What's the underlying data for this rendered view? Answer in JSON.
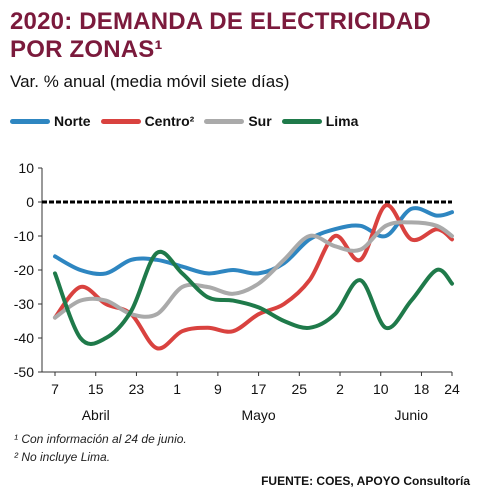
{
  "title_line1": "2020: DEMANDA DE ELECTRICIDAD",
  "title_line2": "POR ZONAS¹",
  "subtitle": "Var. % anual (media móvil siete días)",
  "footnote1": "¹ Con información al 24 de junio.",
  "footnote2": "² No incluye Lima.",
  "source": "FUENTE: COES, APOYO Consultoría",
  "colors": {
    "title": "#7b1a3c",
    "Norte": "#2e86c1",
    "Centro": "#d9423f",
    "Sur": "#aaaaaa",
    "Lima": "#1f7a4a",
    "zero_line": "#000000"
  },
  "chart_data": {
    "type": "line",
    "xlabel": "",
    "ylabel": "",
    "ylim": [
      -50,
      10
    ],
    "yticks": [
      10,
      0,
      -10,
      -20,
      -30,
      -40,
      -50
    ],
    "x_tick_labels": [
      "7",
      "15",
      "23",
      "1",
      "9",
      "17",
      "25",
      "2",
      "10",
      "18",
      "24"
    ],
    "month_labels": [
      "Abril",
      "Mayo",
      "Junio"
    ],
    "grid": false,
    "legend_position": "top",
    "x": [
      "2020-04-07",
      "2020-04-12",
      "2020-04-17",
      "2020-04-22",
      "2020-04-27",
      "2020-05-02",
      "2020-05-07",
      "2020-05-12",
      "2020-05-17",
      "2020-05-22",
      "2020-05-27",
      "2020-06-01",
      "2020-06-06",
      "2020-06-11",
      "2020-06-16",
      "2020-06-21",
      "2020-06-24"
    ],
    "series": [
      {
        "name": "Norte",
        "values": [
          -16,
          -20,
          -21,
          -17,
          -17,
          -19,
          -21,
          -20,
          -21,
          -18,
          -11,
          -8,
          -7,
          -10,
          -2,
          -4,
          -3
        ]
      },
      {
        "name": "Centro²",
        "values": [
          -34,
          -25,
          -30,
          -33,
          -43,
          -38,
          -37,
          -38,
          -33,
          -30,
          -23,
          -10,
          -17,
          -1,
          -11,
          -8,
          -11
        ]
      },
      {
        "name": "Sur",
        "values": [
          -34,
          -29,
          -29,
          -33,
          -33,
          -25,
          -25,
          -27,
          -24,
          -17,
          -10,
          -13,
          -14,
          -7,
          -6,
          -7,
          -10
        ]
      },
      {
        "name": "Lima",
        "values": [
          -21,
          -40,
          -40,
          -32,
          -15,
          -21,
          -28,
          -29,
          -31,
          -35,
          -37,
          -33,
          -23,
          -37,
          -29,
          -20,
          -24
        ]
      }
    ]
  }
}
